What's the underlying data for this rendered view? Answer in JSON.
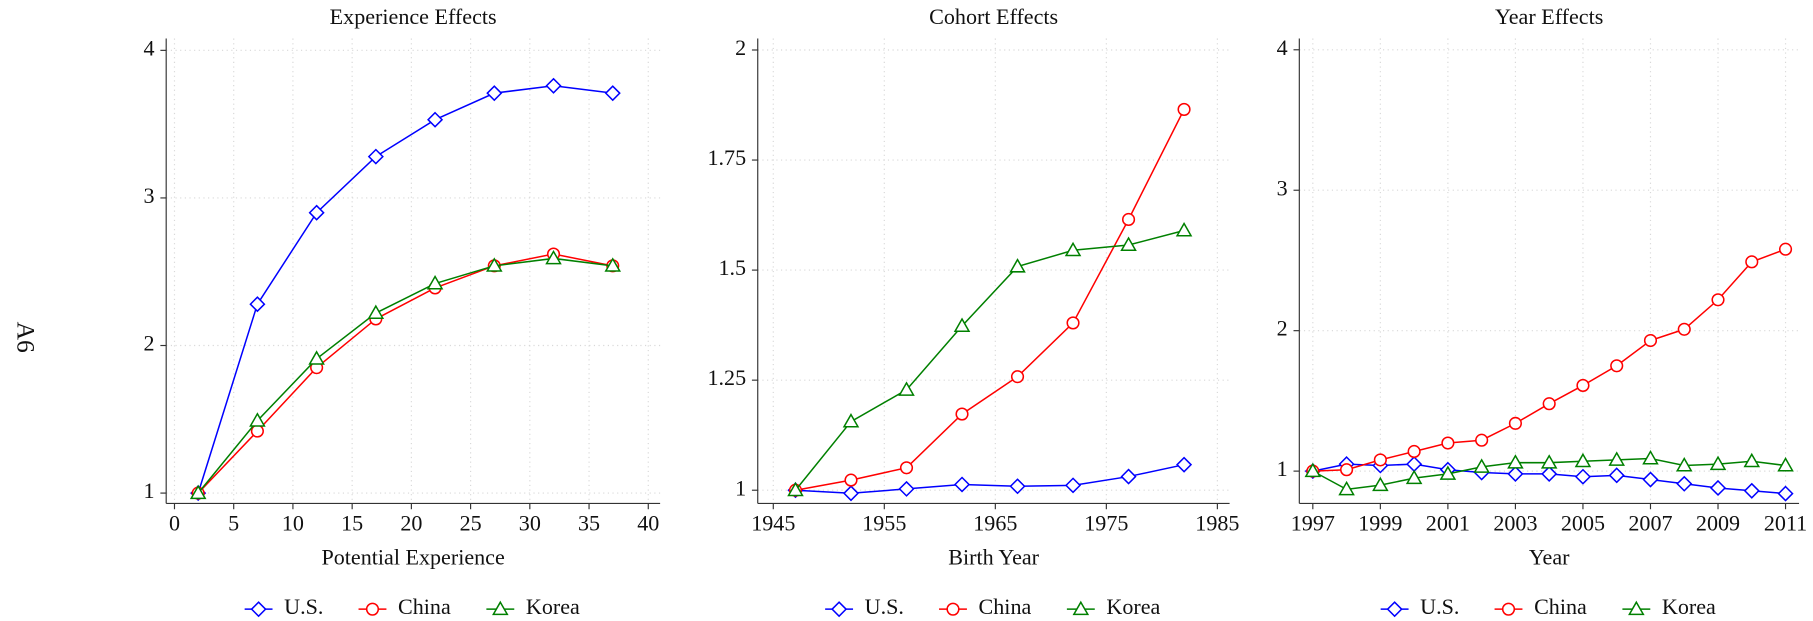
{
  "page_label": "A6",
  "chart_data": [
    {
      "type": "line",
      "title": "Experience Effects",
      "x_label": "Potential Experience",
      "x": [
        2,
        7,
        12,
        17,
        22,
        27,
        32,
        37
      ],
      "xlim": [
        -0.7,
        41
      ],
      "xticks": [
        0,
        5,
        10,
        15,
        20,
        25,
        30,
        35,
        40
      ],
      "ylim": [
        0.93,
        4.08
      ],
      "yticks": [
        1,
        2,
        3,
        4
      ],
      "grid": true,
      "legend": "bottom",
      "series": [
        {
          "name": "U.S.",
          "color": "#0000ff",
          "marker": "diamond",
          "values": [
            1,
            2.28,
            2.9,
            3.28,
            3.53,
            3.71,
            3.76,
            3.71
          ]
        },
        {
          "name": "China",
          "color": "#ff0000",
          "marker": "circle",
          "values": [
            1,
            1.42,
            1.85,
            2.18,
            2.39,
            2.54,
            2.62,
            2.54
          ]
        },
        {
          "name": "Korea",
          "color": "#008000",
          "marker": "triangle",
          "values": [
            1,
            1.49,
            1.91,
            2.22,
            2.42,
            2.54,
            2.59,
            2.54
          ]
        }
      ]
    },
    {
      "type": "line",
      "title": "Cohort Effects",
      "x_label": "Birth Year",
      "x": [
        1947,
        1952,
        1957,
        1962,
        1967,
        1972,
        1977,
        1982
      ],
      "xlim": [
        1943.6,
        1986.1
      ],
      "xticks": [
        1945,
        1955,
        1965,
        1975,
        1985
      ],
      "ylim": [
        0.97,
        2.026
      ],
      "yticks": [
        1,
        1.25,
        1.5,
        1.75,
        2
      ],
      "grid": true,
      "legend": "bottom",
      "series": [
        {
          "name": "U.S.",
          "color": "#0000ff",
          "marker": "diamond",
          "values": [
            1,
            0.993,
            1.003,
            1.013,
            1.009,
            1.011,
            1.031,
            1.058
          ]
        },
        {
          "name": "China",
          "color": "#ff0000",
          "marker": "circle",
          "values": [
            1,
            1.023,
            1.051,
            1.173,
            1.258,
            1.38,
            1.615,
            1.865
          ]
        },
        {
          "name": "Korea",
          "color": "#008000",
          "marker": "triangle",
          "values": [
            1,
            1.156,
            1.228,
            1.373,
            1.508,
            1.545,
            1.557,
            1.59
          ]
        }
      ]
    },
    {
      "type": "line",
      "title": "Year Effects",
      "x_label": "Year",
      "x": [
        1997,
        1998,
        1999,
        2000,
        2001,
        2002,
        2003,
        2004,
        2005,
        2006,
        2007,
        2008,
        2009,
        2010,
        2011
      ],
      "xlim": [
        1996.6,
        2011.4
      ],
      "xticks": [
        1997,
        1999,
        2001,
        2003,
        2005,
        2007,
        2009,
        2011
      ],
      "ylim": [
        0.77,
        4.08
      ],
      "yticks": [
        1,
        2,
        3,
        4
      ],
      "grid": true,
      "legend": "bottom",
      "series": [
        {
          "name": "U.S.",
          "color": "#0000ff",
          "marker": "diamond",
          "values": [
            1.0,
            1.05,
            1.04,
            1.05,
            1.01,
            0.99,
            0.98,
            0.98,
            0.96,
            0.97,
            0.94,
            0.91,
            0.88,
            0.86,
            0.84
          ]
        },
        {
          "name": "China",
          "color": "#ff0000",
          "marker": "circle",
          "values": [
            1.0,
            1.01,
            1.08,
            1.14,
            1.2,
            1.22,
            1.34,
            1.48,
            1.61,
            1.75,
            1.93,
            2.01,
            2.22,
            2.49,
            2.58
          ]
        },
        {
          "name": "Korea",
          "color": "#008000",
          "marker": "triangle",
          "values": [
            1.0,
            0.87,
            0.9,
            0.95,
            0.98,
            1.03,
            1.06,
            1.06,
            1.07,
            1.08,
            1.09,
            1.04,
            1.05,
            1.07,
            1.04
          ]
        }
      ]
    }
  ]
}
